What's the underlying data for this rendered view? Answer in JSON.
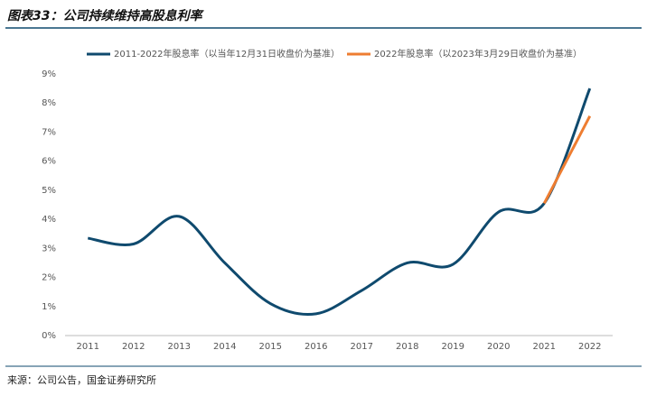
{
  "chart_data": {
    "type": "line",
    "title": "图表33：公司持续维持高股息利率",
    "source": "来源：公司公告，国金证券研究所",
    "categories": [
      "2011",
      "2012",
      "2013",
      "2014",
      "2015",
      "2016",
      "2017",
      "2018",
      "2019",
      "2020",
      "2021",
      "2022"
    ],
    "series": [
      {
        "name": "2011-2022年股息率（以当年12月31日收盘价为基准）",
        "color": "#0f4a6e",
        "values": [
          3.35,
          3.15,
          4.1,
          2.5,
          1.1,
          0.75,
          1.55,
          2.5,
          2.45,
          4.25,
          4.55,
          8.5
        ]
      },
      {
        "name": "2022年股息率（以2023年3月29日收盘价为基准）",
        "color": "#ee7d31",
        "values": [
          null,
          null,
          null,
          null,
          null,
          null,
          null,
          null,
          null,
          null,
          4.55,
          7.55
        ]
      }
    ],
    "ylim": [
      0,
      9
    ],
    "yticks": [
      {
        "value": 0,
        "label": "0%"
      },
      {
        "value": 1,
        "label": "1%"
      },
      {
        "value": 2,
        "label": "2%"
      },
      {
        "value": 3,
        "label": "3%"
      },
      {
        "value": 4,
        "label": "4%"
      },
      {
        "value": 5,
        "label": "5%"
      },
      {
        "value": 6,
        "label": "6%"
      },
      {
        "value": 7,
        "label": "7%"
      },
      {
        "value": 8,
        "label": "8%"
      },
      {
        "value": 9,
        "label": "9%"
      }
    ],
    "smooth": true
  }
}
